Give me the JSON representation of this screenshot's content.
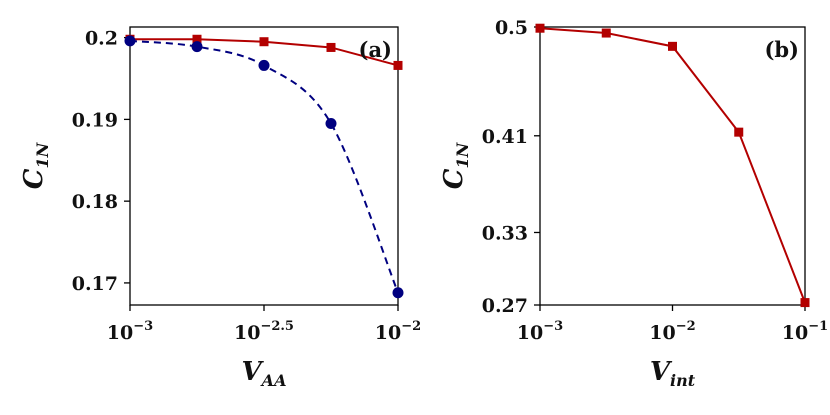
{
  "chart_data": [
    {
      "type": "line",
      "panel_label": "(a)",
      "ylabel": {
        "main": "C",
        "sub": "1N"
      },
      "xlabel": {
        "main": "V",
        "sub": "AA"
      },
      "x_scale": "log",
      "xlim": [
        0.001,
        0.01
      ],
      "ylim": [
        0.1673,
        0.2013
      ],
      "x_ticks": [
        {
          "value": 0.001,
          "base": "10",
          "exp": "−3"
        },
        {
          "value": 0.0031623,
          "base": "10",
          "exp": "−2.5"
        },
        {
          "value": 0.01,
          "base": "10",
          "exp": "−2"
        }
      ],
      "y_ticks": [
        {
          "value": 0.17,
          "label": "0.17"
        },
        {
          "value": 0.18,
          "label": "0.18"
        },
        {
          "value": 0.19,
          "label": "0.19"
        },
        {
          "value": 0.2,
          "label": "0.2"
        }
      ],
      "grid": false,
      "series": [
        {
          "marker": "square",
          "line": "solid",
          "color": "#b30000",
          "x": [
            0.001,
            0.0017783,
            0.0031623,
            0.0056234,
            0.01
          ],
          "y": [
            0.1998,
            0.1998,
            0.1995,
            0.1988,
            0.1966
          ]
        },
        {
          "marker": "circle",
          "line": "dashed",
          "color": "#000080",
          "x": [
            0.001,
            0.0017783,
            0.0031623,
            0.0056234,
            0.01
          ],
          "y": [
            0.1996,
            0.1989,
            0.1966,
            0.1895,
            0.1688
          ]
        }
      ]
    },
    {
      "type": "line",
      "panel_label": "(b)",
      "ylabel": {
        "main": "C",
        "sub": "1N"
      },
      "xlabel": {
        "main": "V",
        "sub": "int"
      },
      "x_scale": "log",
      "xlim": [
        0.001,
        0.1
      ],
      "ylim": [
        0.27,
        0.5
      ],
      "x_ticks": [
        {
          "value": 0.001,
          "base": "10",
          "exp": "−3"
        },
        {
          "value": 0.01,
          "base": "10",
          "exp": "−2"
        },
        {
          "value": 0.1,
          "base": "10",
          "exp": "−1"
        }
      ],
      "y_ticks": [
        {
          "value": 0.27,
          "label": "0.27"
        },
        {
          "value": 0.33,
          "label": "0.33"
        },
        {
          "value": 0.41,
          "label": "0.41"
        },
        {
          "value": 0.5,
          "label": "0.5"
        }
      ],
      "grid": false,
      "series": [
        {
          "marker": "square",
          "line": "solid",
          "color": "#b30000",
          "x": [
            0.001,
            0.0031623,
            0.01,
            0.031623,
            0.1
          ],
          "y": [
            0.499,
            0.495,
            0.484,
            0.413,
            0.272
          ]
        }
      ]
    }
  ]
}
